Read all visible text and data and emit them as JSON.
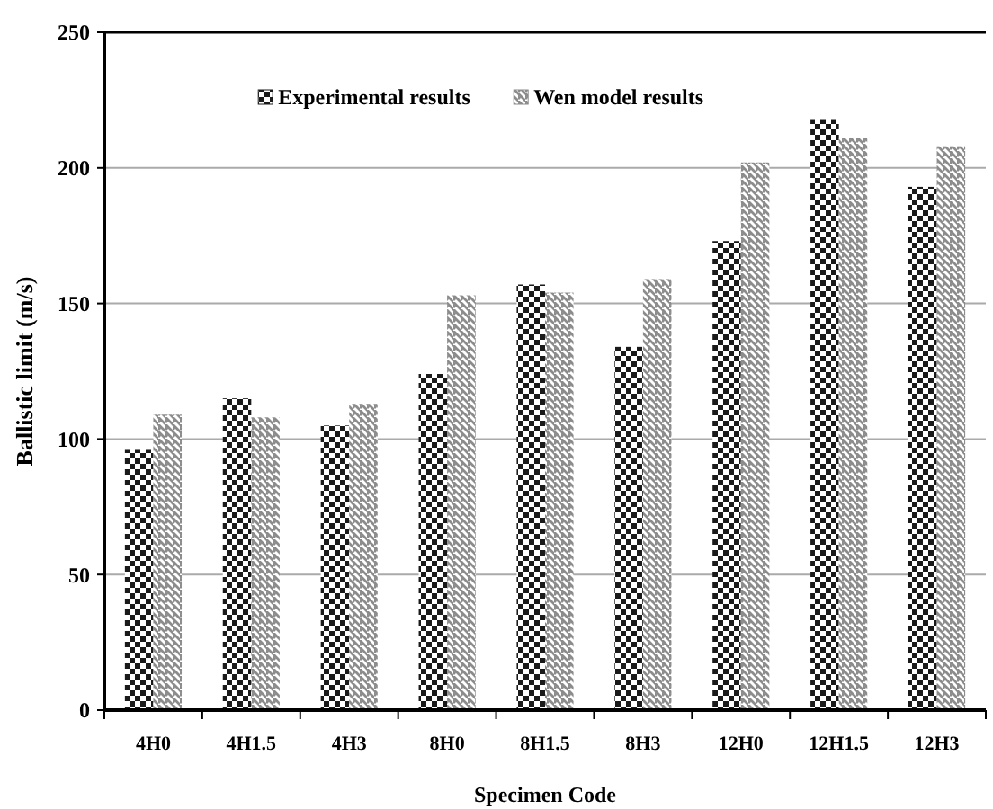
{
  "chart_data": {
    "type": "bar",
    "xlabel": "Specimen Code",
    "ylabel": "Ballistic limit (m/s)",
    "categories": [
      "4H0",
      "4H1.5",
      "4H3",
      "8H0",
      "8H1.5",
      "8H3",
      "12H0",
      "12H1.5",
      "12H3"
    ],
    "series": [
      {
        "name": "Experimental results",
        "color": "#1a1a1a",
        "values": [
          96,
          115,
          105,
          124,
          157,
          134,
          173,
          218,
          193
        ]
      },
      {
        "name": "Wen model results",
        "color": "#8c8c8c",
        "values": [
          109,
          108,
          113,
          153,
          154,
          159,
          202,
          211,
          208
        ]
      }
    ],
    "ylim": [
      0,
      250
    ],
    "yticks": [
      0,
      50,
      100,
      150,
      200,
      250
    ],
    "grid": "y",
    "legend": "top"
  }
}
